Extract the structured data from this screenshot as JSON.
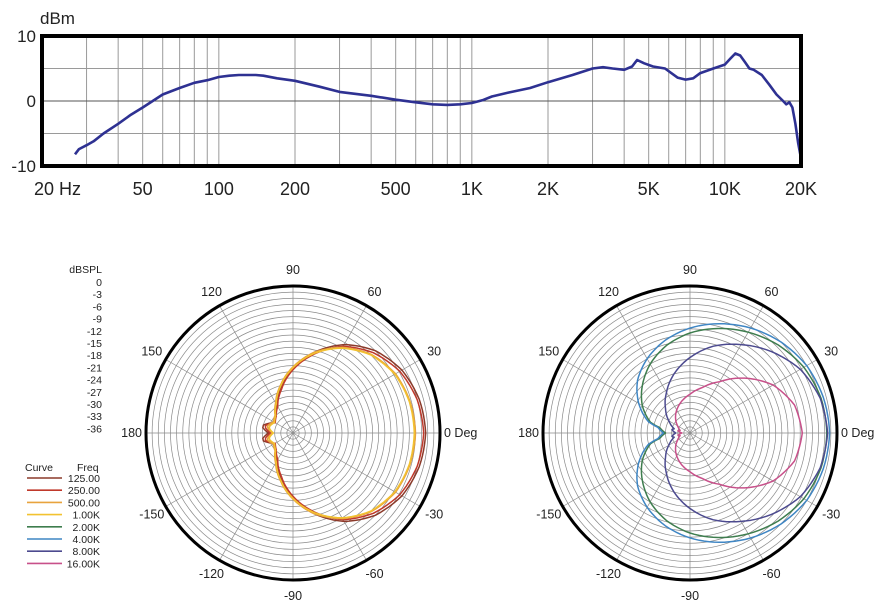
{
  "chart_data": [
    {
      "type": "line",
      "ylabel": "dBm",
      "xlabel": "",
      "x_scale": "log",
      "xlim": [
        20,
        20000
      ],
      "ylim": [
        -10,
        10
      ],
      "yticks": [
        "10",
        "0",
        "-10"
      ],
      "xticks": [
        {
          "v": 20,
          "label": "20  Hz"
        },
        {
          "v": 50,
          "label": "50"
        },
        {
          "v": 100,
          "label": "100"
        },
        {
          "v": 200,
          "label": "200"
        },
        {
          "v": 500,
          "label": "500"
        },
        {
          "v": 1000,
          "label": "1K"
        },
        {
          "v": 2000,
          "label": "2K"
        },
        {
          "v": 5000,
          "label": "5K"
        },
        {
          "v": 10000,
          "label": "10K"
        },
        {
          "v": 20000,
          "label": "20K"
        }
      ],
      "color": "#2e3192",
      "x": [
        27,
        28,
        30,
        32,
        35,
        40,
        45,
        50,
        60,
        70,
        80,
        90,
        100,
        110,
        120,
        130,
        140,
        150,
        170,
        200,
        250,
        300,
        400,
        500,
        600,
        700,
        800,
        900,
        1000,
        1100,
        1200,
        1400,
        1700,
        2000,
        2500,
        3000,
        3300,
        3600,
        4000,
        4300,
        4500,
        4800,
        5200,
        5800,
        6500,
        7000,
        7500,
        8000,
        9000,
        10000,
        10500,
        11000,
        11500,
        12000,
        12500,
        13000,
        14000,
        15000,
        16000,
        17000,
        17500,
        18000,
        18500,
        19000,
        19500,
        20000
      ],
      "y": [
        -8.2,
        -7.4,
        -6.8,
        -6.2,
        -5.0,
        -3.5,
        -2.1,
        -1.0,
        1.0,
        2.0,
        2.8,
        3.2,
        3.7,
        3.9,
        4.0,
        4.0,
        4.0,
        3.9,
        3.5,
        3.1,
        2.2,
        1.4,
        0.8,
        0.2,
        -0.2,
        -0.5,
        -0.6,
        -0.5,
        -0.3,
        0.1,
        0.7,
        1.3,
        2.0,
        2.9,
        4.0,
        5.0,
        5.2,
        5.0,
        4.8,
        5.3,
        6.3,
        5.8,
        5.3,
        5.0,
        3.6,
        3.3,
        3.5,
        4.3,
        5.0,
        5.6,
        6.5,
        7.3,
        7.0,
        6.0,
        5.0,
        4.8,
        4.0,
        2.5,
        1.0,
        0.0,
        -0.5,
        -0.2,
        -1.0,
        -3.5,
        -6.5,
        -8.8
      ]
    },
    {
      "type": "polar",
      "scale_label": "dBSPL",
      "scale_values": [
        "0",
        "-3",
        "-6",
        "-9",
        "-12",
        "-15",
        "-18",
        "-21",
        "-24",
        "-27",
        "-30",
        "-33",
        "-36"
      ],
      "rlim": [
        -36,
        0
      ],
      "angle_labels": [
        {
          "a": 0,
          "label": "0 Deg"
        },
        {
          "a": 30,
          "label": "30"
        },
        {
          "a": 60,
          "label": "60"
        },
        {
          "a": 90,
          "label": "90"
        },
        {
          "a": 120,
          "label": "120"
        },
        {
          "a": 150,
          "label": "150"
        },
        {
          "a": 180,
          "label": "180"
        },
        {
          "a": -150,
          "label": "-150"
        },
        {
          "a": -120,
          "label": "-120"
        },
        {
          "a": -90,
          "label": "-90"
        },
        {
          "a": -60,
          "label": "-60"
        },
        {
          "a": -30,
          "label": "-30"
        }
      ],
      "series": [
        {
          "freq": "125.00",
          "color": "#8b3a2a",
          "angles": [
            0,
            15,
            30,
            45,
            60,
            75,
            90,
            105,
            120,
            135,
            150,
            165,
            170,
            180
          ],
          "values": [
            -3.5,
            -4.0,
            -5.2,
            -7.5,
            -11.0,
            -15.5,
            -20.0,
            -24.5,
            -28.0,
            -30.0,
            -31.0,
            -28.5,
            -28.5,
            -30.0
          ]
        },
        {
          "freq": "250.00",
          "color": "#c0392b",
          "angles": [
            0,
            15,
            30,
            45,
            60,
            75,
            90,
            105,
            120,
            135,
            150,
            165,
            170,
            180
          ],
          "values": [
            -4.0,
            -4.5,
            -5.8,
            -8.2,
            -11.5,
            -16.0,
            -20.5,
            -25.0,
            -28.5,
            -30.2,
            -31.0,
            -29.0,
            -29.2,
            -30.5
          ]
        },
        {
          "freq": "500.00",
          "color": "#e8a33d",
          "angles": [
            0,
            15,
            30,
            45,
            60,
            75,
            90,
            105,
            120,
            135,
            150,
            165,
            170,
            180
          ],
          "values": [
            -6.0,
            -6.3,
            -7.0,
            -8.8,
            -11.8,
            -15.5,
            -19.8,
            -24.0,
            -27.5,
            -29.8,
            -30.5,
            -29.5,
            -29.8,
            -31.0
          ]
        },
        {
          "freq": "1.00K",
          "color": "#f2c230",
          "angles": [
            0,
            15,
            30,
            45,
            60,
            75,
            90,
            105,
            120,
            135,
            150,
            165,
            170,
            180
          ],
          "values": [
            -6.3,
            -6.5,
            -7.2,
            -9.0,
            -12.0,
            -15.8,
            -20.0,
            -24.2,
            -27.8,
            -30.0,
            -30.8,
            -30.0,
            -30.2,
            -31.2
          ]
        }
      ]
    },
    {
      "type": "polar",
      "rlim": [
        -36,
        0
      ],
      "angle_labels": [
        {
          "a": 0,
          "label": "0 Deg"
        },
        {
          "a": 30,
          "label": "30"
        },
        {
          "a": 60,
          "label": "60"
        },
        {
          "a": 90,
          "label": "90"
        },
        {
          "a": 120,
          "label": "120"
        },
        {
          "a": 150,
          "label": "150"
        },
        {
          "a": 180,
          "label": "180"
        },
        {
          "a": -150,
          "label": "-150"
        },
        {
          "a": -120,
          "label": "-120"
        },
        {
          "a": -90,
          "label": "-90"
        },
        {
          "a": -60,
          "label": "-60"
        },
        {
          "a": -30,
          "label": "-30"
        }
      ],
      "series": [
        {
          "freq": "2.00K",
          "color": "#3e7d4e",
          "angles": [
            0,
            15,
            30,
            45,
            60,
            75,
            90,
            105,
            120,
            135,
            150,
            165,
            170,
            180
          ],
          "values": [
            -2.5,
            -2.8,
            -3.8,
            -5.5,
            -7.5,
            -9.5,
            -11.5,
            -13.8,
            -16.5,
            -19.5,
            -22.5,
            -26.0,
            -28.5,
            -30.0
          ]
        },
        {
          "freq": "4.00K",
          "color": "#3f86c4",
          "angles": [
            0,
            15,
            30,
            45,
            60,
            75,
            90,
            105,
            120,
            135,
            150,
            165,
            170,
            180
          ],
          "values": [
            -1.8,
            -2.2,
            -3.0,
            -4.5,
            -6.3,
            -8.3,
            -10.3,
            -12.5,
            -15.0,
            -17.8,
            -21.5,
            -25.5,
            -28.0,
            -29.5
          ]
        },
        {
          "freq": "8.00K",
          "color": "#4c4a8f",
          "angles": [
            0,
            15,
            30,
            45,
            60,
            75,
            90,
            105,
            120,
            135,
            150,
            165,
            170,
            180
          ],
          "values": [
            -2.3,
            -3.0,
            -4.8,
            -7.8,
            -11.0,
            -14.0,
            -17.5,
            -21.0,
            -24.5,
            -27.5,
            -30.0,
            -32.0,
            -31.5,
            -32.5
          ]
        },
        {
          "freq": "16.00K",
          "color": "#c8508a",
          "angles": [
            0,
            15,
            30,
            45,
            60,
            75,
            90,
            105,
            120,
            135,
            150,
            165,
            170,
            180
          ],
          "values": [
            -8.5,
            -9.5,
            -12.5,
            -17.0,
            -21.5,
            -24.5,
            -26.5,
            -28.0,
            -29.5,
            -31.0,
            -32.5,
            -33.5,
            -33.0,
            -34.0
          ]
        }
      ]
    }
  ],
  "legend": {
    "curve_header": "Curve",
    "freq_header": "Freq"
  }
}
